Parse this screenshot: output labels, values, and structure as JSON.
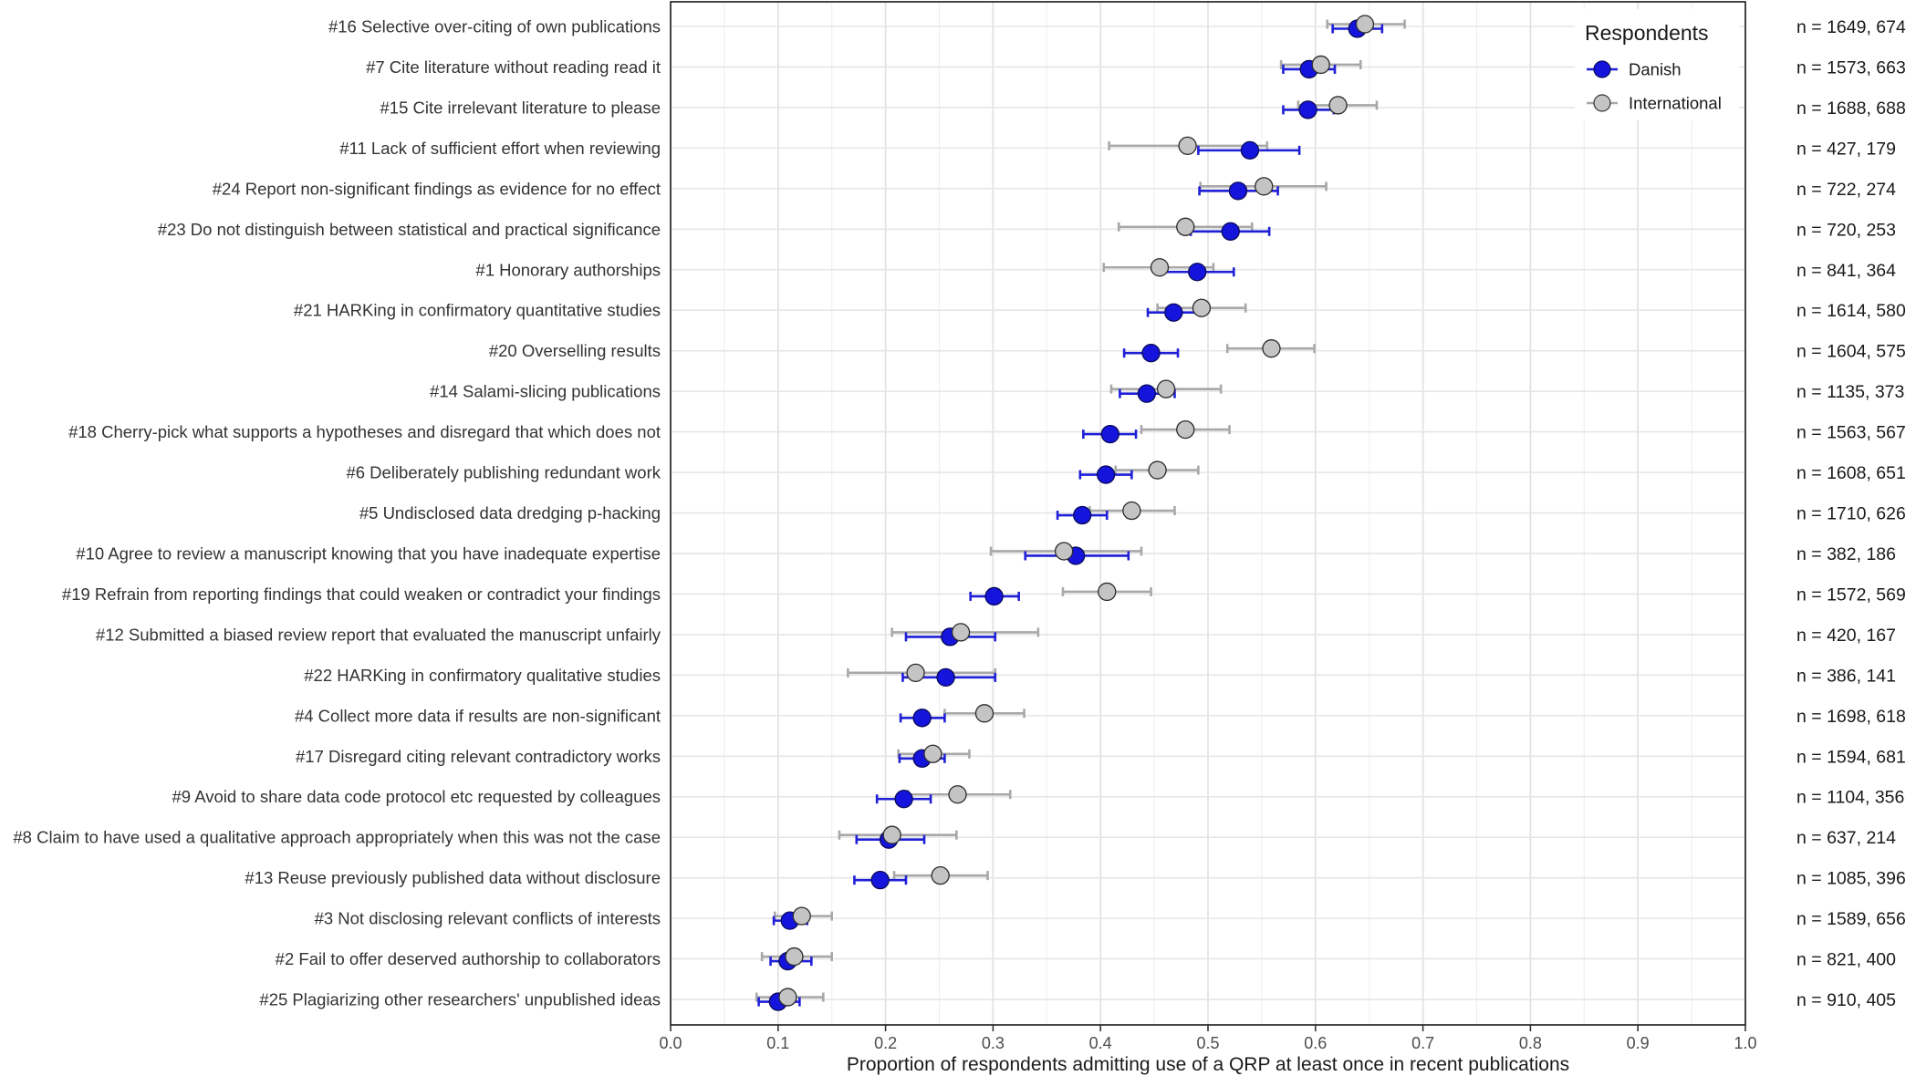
{
  "chart_data": {
    "type": "scatter",
    "subtype": "dot-plot-with-error-bars",
    "xlabel": "Proportion of respondents admitting use of a QRP at least once in recent publications",
    "xlim": [
      0,
      1
    ],
    "xticks": [
      "0.0",
      "0.1",
      "0.2",
      "0.3",
      "0.4",
      "0.5",
      "0.6",
      "0.7",
      "0.8",
      "0.9",
      "1.0"
    ],
    "grid": true,
    "legend": {
      "title": "Respondents",
      "position": "top-right",
      "entries": [
        {
          "name": "Danish",
          "color": "#1414dc"
        },
        {
          "name": "International",
          "color": "#c4c4c4"
        }
      ]
    },
    "series_colors": {
      "danish_fill": "#1414dc",
      "danish_bar": "#1f1fd8",
      "intl_fill": "#c4c4c4",
      "intl_bar": "#a8a8a8"
    },
    "categories": [
      "#16 Selective over-citing of own publications",
      "#7 Cite literature without reading read it",
      "#15 Cite irrelevant literature to please",
      "#11 Lack of sufficient effort when reviewing",
      "#24 Report non-significant findings as evidence for no effect",
      "#23 Do not distinguish between statistical and practical significance",
      "#1 Honorary authorships",
      "#21 HARKing in confirmatory quantitative studies",
      "#20 Overselling results",
      "#14 Salami-slicing publications",
      "#18 Cherry-pick what supports a hypotheses and disregard that which does not",
      "#6 Deliberately publishing redundant work",
      "#5 Undisclosed data dredging p-hacking",
      "#10 Agree to review a manuscript knowing that you have inadequate expertise",
      "#19 Refrain from reporting findings that could weaken or contradict your findings",
      "#12 Submitted a biased review report that evaluated the manuscript unfairly",
      "#22 HARKing in confirmatory qualitative studies",
      "#4 Collect more data if results are non-significant",
      "#17 Disregard citing relevant contradictory works",
      "#9 Avoid to share data code protocol etc requested by colleagues",
      "#8 Claim to have used a qualitative approach appropriately when this was not the case",
      "#13 Reuse previously published data without disclosure",
      "#3 Not disclosing relevant conflicts of interests",
      "#2 Fail to offer deserved authorship to collaborators",
      "#25 Plagiarizing other researchers' unpublished ideas"
    ],
    "n_labels": [
      "n = 1649, 674",
      "n = 1573, 663",
      "n = 1688, 688",
      "n = 427, 179",
      "n = 722, 274",
      "n = 720, 253",
      "n = 841, 364",
      "n = 1614, 580",
      "n = 1604, 575",
      "n = 1135, 373",
      "n = 1563, 567",
      "n = 1608, 651",
      "n = 1710, 626",
      "n = 382, 186",
      "n = 1572, 569",
      "n = 420, 167",
      "n = 386, 141",
      "n = 1698, 618",
      "n = 1594, 681",
      "n = 1104, 356",
      "n = 637, 214",
      "n = 1085, 396",
      "n = 1589, 656",
      "n = 821, 400",
      "n = 910, 405"
    ],
    "series": [
      {
        "name": "Danish",
        "values": [
          0.639,
          0.594,
          0.593,
          0.539,
          0.528,
          0.521,
          0.49,
          0.468,
          0.447,
          0.443,
          0.409,
          0.405,
          0.383,
          0.377,
          0.301,
          0.26,
          0.256,
          0.234,
          0.234,
          0.217,
          0.203,
          0.195,
          0.111,
          0.109,
          0.1
        ],
        "lower": [
          0.616,
          0.57,
          0.57,
          0.491,
          0.492,
          0.484,
          0.456,
          0.444,
          0.422,
          0.418,
          0.384,
          0.381,
          0.36,
          0.33,
          0.279,
          0.219,
          0.216,
          0.214,
          0.213,
          0.192,
          0.173,
          0.171,
          0.096,
          0.093,
          0.082
        ],
        "upper": [
          0.662,
          0.618,
          0.617,
          0.585,
          0.565,
          0.557,
          0.524,
          0.493,
          0.472,
          0.469,
          0.433,
          0.429,
          0.406,
          0.426,
          0.324,
          0.302,
          0.302,
          0.255,
          0.255,
          0.242,
          0.236,
          0.219,
          0.127,
          0.131,
          0.12
        ]
      },
      {
        "name": "International",
        "values": [
          0.646,
          0.605,
          0.621,
          0.481,
          0.552,
          0.479,
          0.455,
          0.494,
          0.559,
          0.461,
          0.479,
          0.453,
          0.429,
          0.366,
          0.406,
          0.27,
          0.228,
          0.292,
          0.244,
          0.267,
          0.206,
          0.251,
          0.122,
          0.115,
          0.109
        ],
        "lower": [
          0.611,
          0.568,
          0.584,
          0.408,
          0.493,
          0.417,
          0.403,
          0.453,
          0.518,
          0.41,
          0.438,
          0.414,
          0.39,
          0.298,
          0.365,
          0.206,
          0.165,
          0.255,
          0.212,
          0.221,
          0.157,
          0.208,
          0.097,
          0.085,
          0.08
        ],
        "upper": [
          0.683,
          0.642,
          0.657,
          0.555,
          0.61,
          0.541,
          0.505,
          0.535,
          0.599,
          0.512,
          0.52,
          0.491,
          0.469,
          0.438,
          0.447,
          0.342,
          0.302,
          0.329,
          0.278,
          0.316,
          0.266,
          0.295,
          0.15,
          0.15,
          0.142
        ]
      }
    ]
  }
}
